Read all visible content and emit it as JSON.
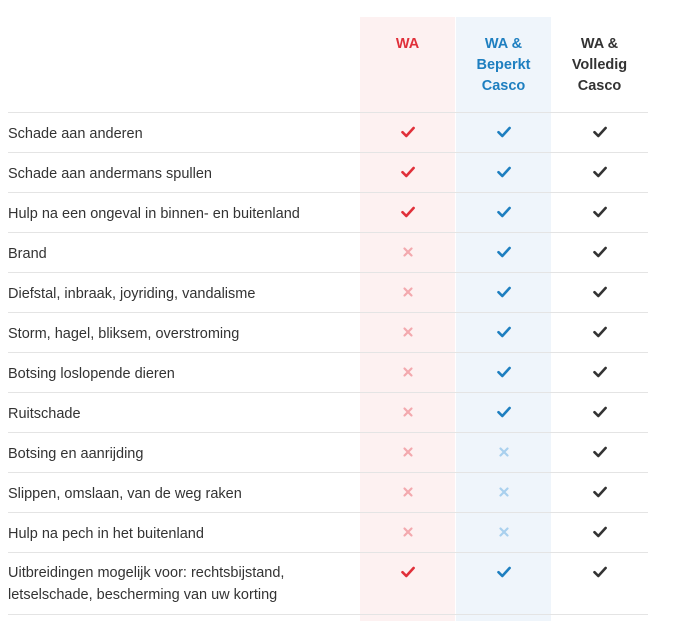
{
  "colors": {
    "wa": "#e0303a",
    "wa_cross": "#f3a9ae",
    "beperkt": "#1e7fc0",
    "beperkt_cross": "#a9d0ee",
    "volledig": "#333333",
    "text": "#333333"
  },
  "header": {
    "wa": [
      "WA"
    ],
    "beperkt": [
      "WA &",
      "Beperkt",
      "Casco"
    ],
    "volledig": [
      "WA &",
      "Volledig",
      "Casco"
    ]
  },
  "rows": [
    {
      "label": [
        "Schade aan anderen"
      ],
      "wa": "check",
      "beperkt": "check",
      "volledig": "check"
    },
    {
      "label": [
        "Schade aan andermans spullen"
      ],
      "wa": "check",
      "beperkt": "check",
      "volledig": "check"
    },
    {
      "label": [
        "Hulp na een ongeval in binnen- en buitenland"
      ],
      "wa": "check",
      "beperkt": "check",
      "volledig": "check"
    },
    {
      "label": [
        "Brand"
      ],
      "wa": "cross",
      "beperkt": "check",
      "volledig": "check"
    },
    {
      "label": [
        "Diefstal, inbraak, joyriding, vandalisme"
      ],
      "wa": "cross",
      "beperkt": "check",
      "volledig": "check"
    },
    {
      "label": [
        "Storm, hagel, bliksem, overstroming"
      ],
      "wa": "cross",
      "beperkt": "check",
      "volledig": "check"
    },
    {
      "label": [
        "Botsing loslopende dieren"
      ],
      "wa": "cross",
      "beperkt": "check",
      "volledig": "check"
    },
    {
      "label": [
        "Ruitschade"
      ],
      "wa": "cross",
      "beperkt": "check",
      "volledig": "check"
    },
    {
      "label": [
        "Botsing en aanrijding"
      ],
      "wa": "cross",
      "beperkt": "cross",
      "volledig": "check"
    },
    {
      "label": [
        "Slippen, omslaan, van de weg raken"
      ],
      "wa": "cross",
      "beperkt": "cross",
      "volledig": "check"
    },
    {
      "label": [
        "Hulp na pech in het buitenland"
      ],
      "wa": "cross",
      "beperkt": "cross",
      "volledig": "check"
    },
    {
      "label": [
        "Uitbreidingen mogelijk voor: rechtsbijstand,",
        "letselschade, bescherming van uw korting"
      ],
      "wa": "check",
      "beperkt": "check",
      "volledig": "check"
    }
  ]
}
